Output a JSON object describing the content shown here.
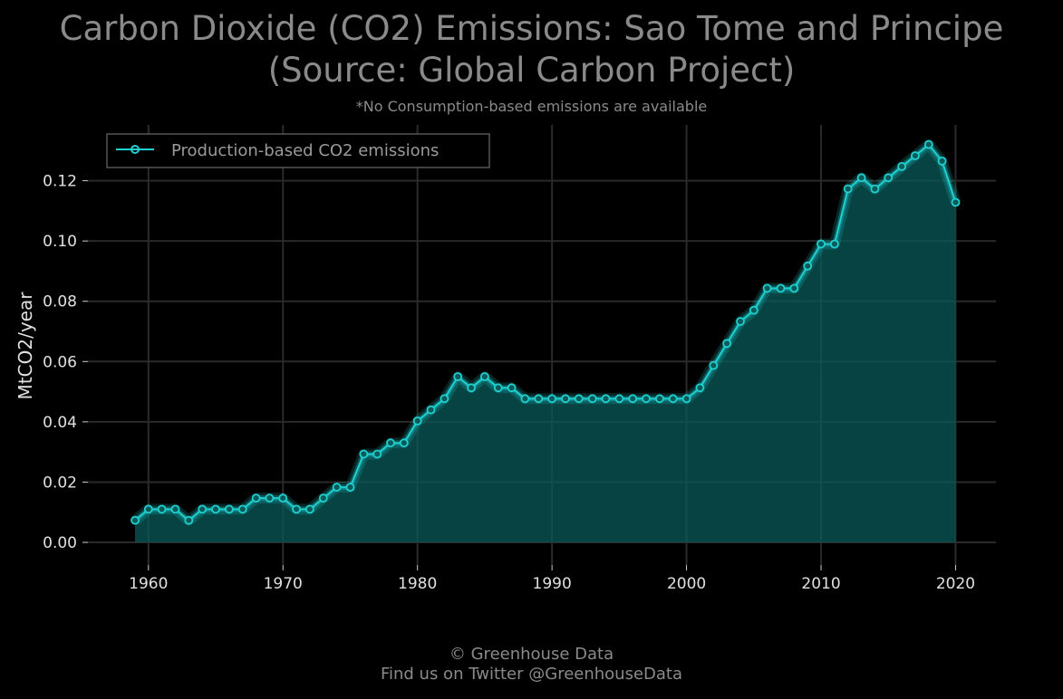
{
  "header": {
    "title_line1": "Carbon Dioxide (CO2) Emissions: Sao Tome and Principe",
    "title_line2": "(Source: Global Carbon Project)",
    "subtitle": "*No Consumption-based emissions are available"
  },
  "footer": {
    "line1": "© Greenhouse Data",
    "line2": "Find us on Twitter @GreenhouseData"
  },
  "colors": {
    "background": "#000000",
    "line": "#20d0d0",
    "fill": "#0a5a58",
    "grid": "#2a2a2a",
    "text": "#e0e0e0",
    "title": "#8a8a8a"
  },
  "chart_data": {
    "type": "area",
    "ylabel": "MtCO2/year",
    "xlim": [
      1955.5,
      2023
    ],
    "ylim": [
      -0.0075,
      0.1385
    ],
    "xticks": [
      1960,
      1970,
      1980,
      1990,
      2000,
      2010,
      2020
    ],
    "yticks": [
      0.0,
      0.02,
      0.04,
      0.06,
      0.08,
      0.1,
      0.12
    ],
    "ytick_labels": [
      "0.00",
      "0.02",
      "0.04",
      "0.06",
      "0.08",
      "0.10",
      "0.12"
    ],
    "grid": true,
    "legend": {
      "position": "top-left",
      "entries": [
        "Production-based CO2 emissions"
      ]
    },
    "series": [
      {
        "name": "Production-based CO2 emissions",
        "x": [
          1959,
          1960,
          1961,
          1962,
          1963,
          1964,
          1965,
          1966,
          1967,
          1968,
          1969,
          1970,
          1971,
          1972,
          1973,
          1974,
          1975,
          1976,
          1977,
          1978,
          1979,
          1980,
          1981,
          1982,
          1983,
          1984,
          1985,
          1986,
          1987,
          1988,
          1989,
          1990,
          1991,
          1992,
          1993,
          1994,
          1995,
          1996,
          1997,
          1998,
          1999,
          2000,
          2001,
          2002,
          2003,
          2004,
          2005,
          2006,
          2007,
          2008,
          2009,
          2010,
          2011,
          2012,
          2013,
          2014,
          2015,
          2016,
          2017,
          2018,
          2019,
          2020
        ],
        "values": [
          0.0073,
          0.011,
          0.011,
          0.011,
          0.0073,
          0.011,
          0.011,
          0.011,
          0.011,
          0.0147,
          0.0147,
          0.0147,
          0.011,
          0.011,
          0.0147,
          0.0183,
          0.0183,
          0.0293,
          0.0293,
          0.033,
          0.033,
          0.0403,
          0.044,
          0.0477,
          0.055,
          0.0513,
          0.055,
          0.0513,
          0.0513,
          0.0477,
          0.0477,
          0.0477,
          0.0477,
          0.0477,
          0.0477,
          0.0477,
          0.0477,
          0.0477,
          0.0477,
          0.0477,
          0.0477,
          0.0477,
          0.0513,
          0.0587,
          0.066,
          0.0733,
          0.077,
          0.0843,
          0.0843,
          0.0843,
          0.0917,
          0.099,
          0.099,
          0.1173,
          0.121,
          0.1173,
          0.121,
          0.1247,
          0.1283,
          0.132,
          0.1265,
          0.1128
        ]
      }
    ]
  }
}
